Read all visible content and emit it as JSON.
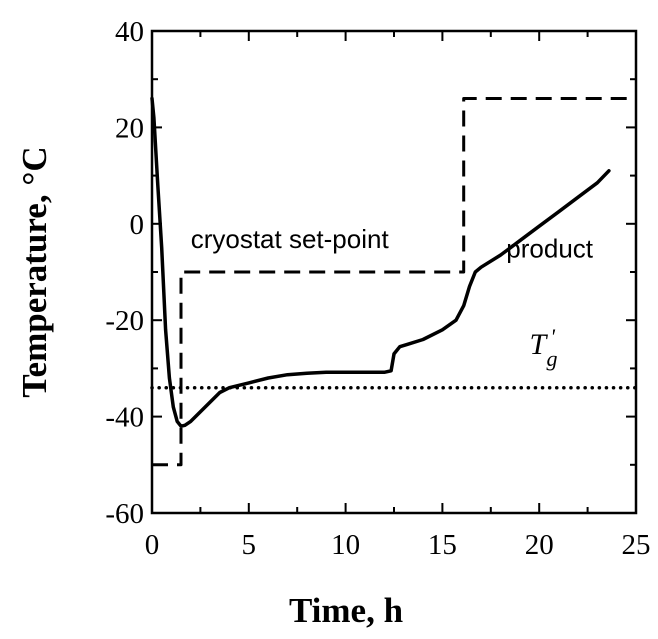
{
  "chart_data": {
    "type": "line",
    "title": "",
    "xlabel": "Time, h",
    "ylabel": "Temperature, °C",
    "xlim": [
      0,
      25
    ],
    "ylim": [
      -60,
      40
    ],
    "x_ticks": [
      0,
      5,
      10,
      15,
      20,
      25
    ],
    "y_ticks": [
      -60,
      -40,
      -20,
      0,
      20,
      40
    ],
    "x_tick_labels": [
      "0",
      "5",
      "10",
      "15",
      "20",
      "25"
    ],
    "y_tick_labels": [
      "-60",
      "-40",
      "-20",
      "0",
      "20",
      "40"
    ],
    "grid": false,
    "series": [
      {
        "name": "product",
        "style": "solid",
        "x": [
          0,
          0.1,
          0.3,
          0.5,
          0.7,
          0.9,
          1.1,
          1.3,
          1.5,
          1.7,
          2.0,
          2.5,
          3.0,
          3.5,
          4.0,
          4.5,
          5.0,
          6.0,
          7.0,
          8.0,
          9.0,
          10.0,
          11.0,
          12.0,
          12.35,
          12.5,
          12.8,
          13.2,
          14.0,
          15.0,
          15.7,
          16.1,
          16.4,
          16.7,
          17.0,
          18.0,
          19.0,
          20.0,
          21.0,
          22.0,
          23.0,
          23.6
        ],
        "y": [
          26,
          22,
          8,
          -5,
          -22,
          -32,
          -38,
          -41,
          -42,
          -41.8,
          -41,
          -39,
          -37,
          -35,
          -34,
          -33.5,
          -33,
          -32,
          -31.3,
          -31,
          -30.8,
          -30.8,
          -30.8,
          -30.8,
          -30.5,
          -27,
          -25.5,
          -25,
          -24,
          -22,
          -20,
          -17,
          -13,
          -10,
          -9,
          -6.5,
          -3.5,
          -0.5,
          2.5,
          5.5,
          8.5,
          11
        ]
      },
      {
        "name": "cryostat set-point",
        "style": "dashed",
        "x": [
          0,
          1.5,
          1.5,
          16.1,
          16.1,
          25
        ],
        "y": [
          -50,
          -50,
          -10,
          -10,
          26,
          26
        ]
      },
      {
        "name": "Tg'",
        "style": "dotted",
        "x": [
          0,
          25
        ],
        "y": [
          -34,
          -34
        ]
      }
    ],
    "annotations": [
      {
        "text": "cryostat set-point",
        "x": 2,
        "y": -5
      },
      {
        "text": "product",
        "x": 18.3,
        "y": -7
      },
      {
        "text": "T",
        "sub": "g",
        "sup": "'",
        "x": 19.5,
        "y": -27
      }
    ]
  }
}
